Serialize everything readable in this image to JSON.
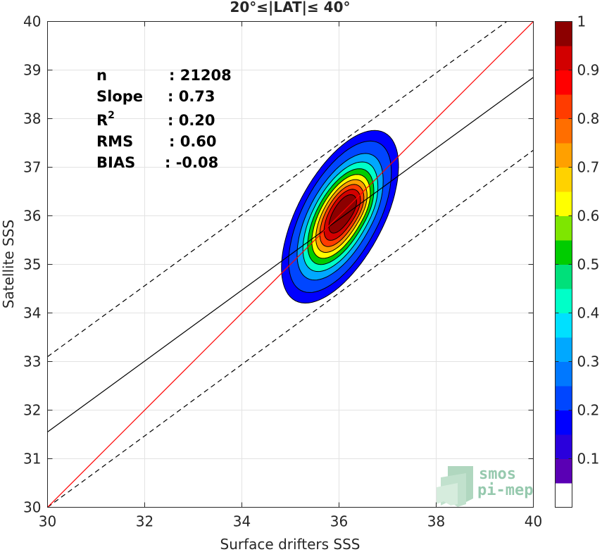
{
  "chart_data": {
    "type": "contour-density-scatter",
    "title": "20°≤|LAT|≤ 40°",
    "xlabel": "Surface drifters SSS",
    "ylabel": "Satellite SSS",
    "xlim": [
      30,
      40
    ],
    "ylim": [
      30,
      40
    ],
    "xticks": [
      30,
      32,
      34,
      36,
      38,
      40
    ],
    "yticks": [
      30,
      31,
      32,
      33,
      34,
      35,
      36,
      37,
      38,
      39,
      40
    ],
    "grid": true,
    "stats": [
      {
        "label": "n",
        "value": ": 21208"
      },
      {
        "label": "Slope",
        "value": ": 0.73"
      },
      {
        "label": "R",
        "sup": "2",
        "value": ": 0.20"
      },
      {
        "label": "RMS",
        "value": ": 0.60"
      },
      {
        "label": "BIAS",
        "value": ": -0.08"
      }
    ],
    "lines": {
      "identity": {
        "x": [
          30,
          40
        ],
        "y": [
          30,
          40
        ],
        "color": "#ff0000"
      },
      "regression": {
        "x": [
          30,
          40
        ],
        "y": [
          31.55,
          38.85
        ],
        "color": "#000000"
      },
      "upper_bound": {
        "x": [
          30,
          40
        ],
        "y": [
          33.1,
          40.4
        ],
        "color": "#000000",
        "dash": true
      },
      "lower_bound": {
        "x": [
          30,
          40
        ],
        "y": [
          30.0,
          37.35
        ],
        "color": "#000000",
        "dash": true
      }
    },
    "density": {
      "center": [
        36.02,
        35.98
      ],
      "major_sd": 0.8,
      "minor_sd": 0.36,
      "angle_deg": 62,
      "peak_secondary": [
        36.5,
        36.3
      ],
      "levels": [
        0.05,
        0.1,
        0.2,
        0.3,
        0.4,
        0.5,
        0.6,
        0.7,
        0.8,
        0.9
      ]
    },
    "colorbar": {
      "ticks": [
        0.1,
        0.2,
        0.3,
        0.4,
        0.5,
        0.6,
        0.7,
        0.8,
        0.9,
        1
      ],
      "tick_labels": [
        "0.1",
        "0.2",
        "0.3",
        "0.4",
        "0.5",
        "0.6",
        "0.7",
        "0.8",
        "0.9",
        "1"
      ],
      "colors": [
        "#ffffff",
        "#5a00b4",
        "#2a00dc",
        "#0000ff",
        "#0046ff",
        "#0078ff",
        "#00a8ff",
        "#00e0ff",
        "#00ffc8",
        "#00e07a",
        "#00cc00",
        "#7ee600",
        "#ffff00",
        "#ffd200",
        "#ffa000",
        "#ff6e00",
        "#ff3c00",
        "#ff0000",
        "#d20000",
        "#8c0000"
      ]
    }
  },
  "watermark": {
    "line1": "smos",
    "line2": "pi-mep"
  }
}
